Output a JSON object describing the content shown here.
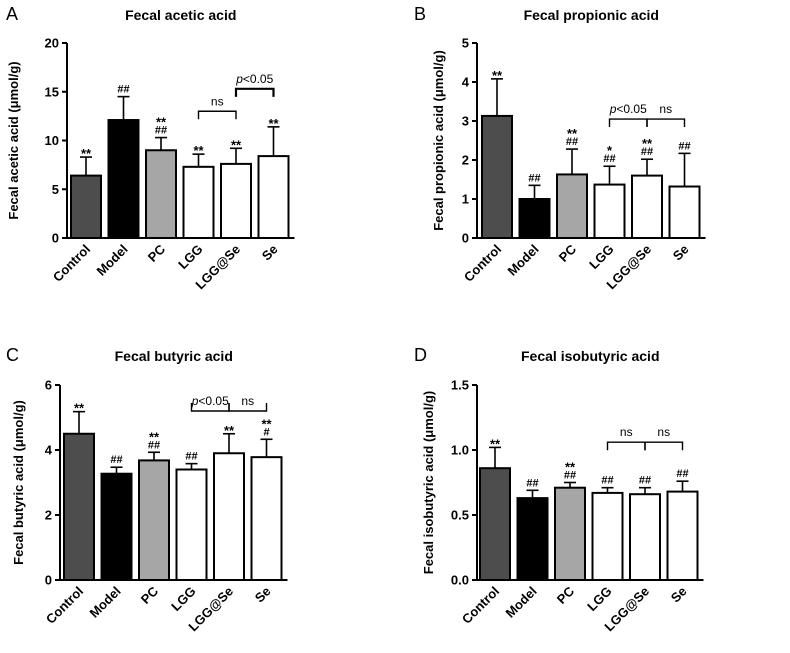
{
  "colors": {
    "Control": "#4d4d4d",
    "Model": "#000000",
    "PC": "#a6a6a6",
    "LGG": "#ffffff",
    "LGG@Se": "#ffffff",
    "Se": "#ffffff",
    "stroke": "#000000"
  },
  "chart_data": [
    {
      "panel": "A",
      "type": "bar",
      "title": "Fecal acetic acid",
      "ylabel": "Fecal acetic acid (μmol/g)",
      "xlabel": "",
      "categories": [
        "Control",
        "Model",
        "PC",
        "LGG",
        "LGG@Se",
        "Se"
      ],
      "values": [
        6.4,
        12.1,
        9.0,
        7.3,
        7.6,
        8.4
      ],
      "errors": [
        1.9,
        2.4,
        1.3,
        1.3,
        1.6,
        3.0
      ],
      "ylim": [
        0,
        20
      ],
      "yticks": [
        "0",
        "5",
        "10",
        "15",
        "20"
      ],
      "annotations": [
        {
          "category": "Control",
          "lines": [
            "**"
          ]
        },
        {
          "category": "Model",
          "lines": [
            "##"
          ]
        },
        {
          "category": "PC",
          "lines": [
            "**",
            "##"
          ]
        },
        {
          "category": "LGG",
          "lines": [
            "**"
          ]
        },
        {
          "category": "LGG@Se",
          "lines": [
            "**"
          ]
        },
        {
          "category": "Se",
          "lines": [
            "**"
          ]
        }
      ],
      "comparisons": [
        {
          "from": "LGG",
          "to": "LGG@Se",
          "y": 13.0,
          "label": "ns",
          "italic_p": false,
          "tick": "down",
          "thick": false
        },
        {
          "from": "LGG@Se",
          "to": "Se",
          "y": 15.3,
          "label": "<0.05",
          "italic_p": true,
          "tick": "down",
          "thick": true
        }
      ]
    },
    {
      "panel": "B",
      "type": "bar",
      "title": "Fecal propionic acid",
      "ylabel": "Fecal propionic acid (μmol/g)",
      "xlabel": "",
      "categories": [
        "Control",
        "Model",
        "PC",
        "LGG",
        "LGG@Se",
        "Se"
      ],
      "values": [
        3.13,
        1.0,
        1.63,
        1.37,
        1.6,
        1.32
      ],
      "errors": [
        0.95,
        0.35,
        0.65,
        0.47,
        0.42,
        0.85
      ],
      "ylim": [
        0,
        5
      ],
      "yticks": [
        "0",
        "1",
        "2",
        "3",
        "4",
        "5"
      ],
      "annotations": [
        {
          "category": "Control",
          "lines": [
            "**"
          ]
        },
        {
          "category": "Model",
          "lines": [
            "##"
          ]
        },
        {
          "category": "PC",
          "lines": [
            "**",
            "##"
          ]
        },
        {
          "category": "LGG",
          "lines": [
            "*",
            "##"
          ]
        },
        {
          "category": "LGG@Se",
          "lines": [
            "**",
            "##"
          ]
        },
        {
          "category": "Se",
          "lines": [
            "##"
          ]
        }
      ],
      "comparisons": [
        {
          "from": "LGG",
          "to": "LGG@Se",
          "y": 3.05,
          "label": "<0.05",
          "italic_p": true,
          "tick": "down",
          "thick": false
        },
        {
          "from": "LGG@Se",
          "to": "Se",
          "y": 3.05,
          "label": "ns",
          "italic_p": false,
          "tick": "down",
          "thick": false
        }
      ]
    },
    {
      "panel": "C",
      "type": "bar",
      "title": "Fecal butyric acid",
      "ylabel": "Fecal butyric acid (μmol/g)",
      "xlabel": "",
      "categories": [
        "Control",
        "Model",
        "PC",
        "LGG",
        "LGG@Se",
        "Se"
      ],
      "values": [
        4.5,
        3.27,
        3.68,
        3.4,
        3.9,
        3.78
      ],
      "errors": [
        0.68,
        0.2,
        0.25,
        0.18,
        0.6,
        0.55
      ],
      "ylim": [
        0,
        6
      ],
      "yticks": [
        "0",
        "2",
        "4",
        "6"
      ],
      "annotations": [
        {
          "category": "Control",
          "lines": [
            "**"
          ]
        },
        {
          "category": "Model",
          "lines": [
            "##"
          ]
        },
        {
          "category": "PC",
          "lines": [
            "**",
            "##"
          ]
        },
        {
          "category": "LGG",
          "lines": [
            "##"
          ]
        },
        {
          "category": "LGG@Se",
          "lines": [
            "**"
          ]
        },
        {
          "category": "Se",
          "lines": [
            "**",
            "#"
          ]
        }
      ],
      "comparisons": [
        {
          "from": "LGG",
          "to": "LGG@Se",
          "y": 5.2,
          "label": "<0.05",
          "italic_p": true,
          "tick": "up",
          "thick": false
        },
        {
          "from": "LGG@Se",
          "to": "Se",
          "y": 5.2,
          "label": "ns",
          "italic_p": false,
          "tick": "up",
          "thick": false
        }
      ]
    },
    {
      "panel": "D",
      "type": "bar",
      "title": "Fecal isobutyric acid",
      "ylabel": "Fecal isobutyric acid (μmol/g)",
      "xlabel": "",
      "categories": [
        "Control",
        "Model",
        "PC",
        "LGG",
        "LGG@Se",
        "Se"
      ],
      "values": [
        0.86,
        0.63,
        0.71,
        0.67,
        0.66,
        0.68
      ],
      "errors": [
        0.16,
        0.06,
        0.04,
        0.04,
        0.05,
        0.08
      ],
      "ylim": [
        0,
        1.5
      ],
      "yticks": [
        "0.0",
        "0.5",
        "1.0",
        "1.5"
      ],
      "annotations": [
        {
          "category": "Control",
          "lines": [
            "**"
          ]
        },
        {
          "category": "Model",
          "lines": [
            "##"
          ]
        },
        {
          "category": "PC",
          "lines": [
            "**",
            "##"
          ]
        },
        {
          "category": "LGG",
          "lines": [
            "##"
          ]
        },
        {
          "category": "LGG@Se",
          "lines": [
            "##"
          ]
        },
        {
          "category": "Se",
          "lines": [
            "##"
          ]
        }
      ],
      "comparisons": [
        {
          "from": "LGG",
          "to": "LGG@Se",
          "y": 1.06,
          "label": "ns",
          "italic_p": false,
          "tick": "down",
          "thick": false
        },
        {
          "from": "LGG@Se",
          "to": "Se",
          "y": 1.06,
          "label": "ns",
          "italic_p": false,
          "tick": "down",
          "thick": false
        }
      ]
    }
  ]
}
